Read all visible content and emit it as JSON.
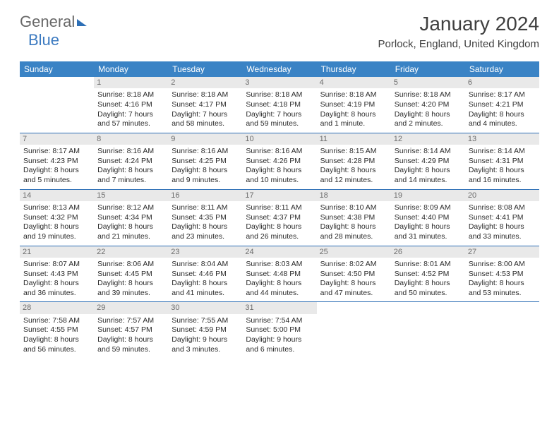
{
  "brand": {
    "name_part1": "General",
    "name_part2": "Blue",
    "color_gray": "#686868",
    "color_blue": "#3c7ac0"
  },
  "header": {
    "month_title": "January 2024",
    "location": "Porlock, England, United Kingdom"
  },
  "styling": {
    "header_bg": "#3a83c5",
    "header_text": "#ffffff",
    "daynum_bg": "#e9e9e9",
    "daynum_text": "#6d6d6d",
    "border_color": "#2d6fb6",
    "cell_text": "#2b2b2b",
    "cell_fontsize": 10.5,
    "page_bg": "#ffffff"
  },
  "day_names": [
    "Sunday",
    "Monday",
    "Tuesday",
    "Wednesday",
    "Thursday",
    "Friday",
    "Saturday"
  ],
  "weeks": [
    [
      {
        "empty": true
      },
      {
        "day": "1",
        "sunrise": "Sunrise: 8:18 AM",
        "sunset": "Sunset: 4:16 PM",
        "daylight1": "Daylight: 7 hours",
        "daylight2": "and 57 minutes."
      },
      {
        "day": "2",
        "sunrise": "Sunrise: 8:18 AM",
        "sunset": "Sunset: 4:17 PM",
        "daylight1": "Daylight: 7 hours",
        "daylight2": "and 58 minutes."
      },
      {
        "day": "3",
        "sunrise": "Sunrise: 8:18 AM",
        "sunset": "Sunset: 4:18 PM",
        "daylight1": "Daylight: 7 hours",
        "daylight2": "and 59 minutes."
      },
      {
        "day": "4",
        "sunrise": "Sunrise: 8:18 AM",
        "sunset": "Sunset: 4:19 PM",
        "daylight1": "Daylight: 8 hours",
        "daylight2": "and 1 minute."
      },
      {
        "day": "5",
        "sunrise": "Sunrise: 8:18 AM",
        "sunset": "Sunset: 4:20 PM",
        "daylight1": "Daylight: 8 hours",
        "daylight2": "and 2 minutes."
      },
      {
        "day": "6",
        "sunrise": "Sunrise: 8:17 AM",
        "sunset": "Sunset: 4:21 PM",
        "daylight1": "Daylight: 8 hours",
        "daylight2": "and 4 minutes."
      }
    ],
    [
      {
        "day": "7",
        "sunrise": "Sunrise: 8:17 AM",
        "sunset": "Sunset: 4:23 PM",
        "daylight1": "Daylight: 8 hours",
        "daylight2": "and 5 minutes."
      },
      {
        "day": "8",
        "sunrise": "Sunrise: 8:16 AM",
        "sunset": "Sunset: 4:24 PM",
        "daylight1": "Daylight: 8 hours",
        "daylight2": "and 7 minutes."
      },
      {
        "day": "9",
        "sunrise": "Sunrise: 8:16 AM",
        "sunset": "Sunset: 4:25 PM",
        "daylight1": "Daylight: 8 hours",
        "daylight2": "and 9 minutes."
      },
      {
        "day": "10",
        "sunrise": "Sunrise: 8:16 AM",
        "sunset": "Sunset: 4:26 PM",
        "daylight1": "Daylight: 8 hours",
        "daylight2": "and 10 minutes."
      },
      {
        "day": "11",
        "sunrise": "Sunrise: 8:15 AM",
        "sunset": "Sunset: 4:28 PM",
        "daylight1": "Daylight: 8 hours",
        "daylight2": "and 12 minutes."
      },
      {
        "day": "12",
        "sunrise": "Sunrise: 8:14 AM",
        "sunset": "Sunset: 4:29 PM",
        "daylight1": "Daylight: 8 hours",
        "daylight2": "and 14 minutes."
      },
      {
        "day": "13",
        "sunrise": "Sunrise: 8:14 AM",
        "sunset": "Sunset: 4:31 PM",
        "daylight1": "Daylight: 8 hours",
        "daylight2": "and 16 minutes."
      }
    ],
    [
      {
        "day": "14",
        "sunrise": "Sunrise: 8:13 AM",
        "sunset": "Sunset: 4:32 PM",
        "daylight1": "Daylight: 8 hours",
        "daylight2": "and 19 minutes."
      },
      {
        "day": "15",
        "sunrise": "Sunrise: 8:12 AM",
        "sunset": "Sunset: 4:34 PM",
        "daylight1": "Daylight: 8 hours",
        "daylight2": "and 21 minutes."
      },
      {
        "day": "16",
        "sunrise": "Sunrise: 8:11 AM",
        "sunset": "Sunset: 4:35 PM",
        "daylight1": "Daylight: 8 hours",
        "daylight2": "and 23 minutes."
      },
      {
        "day": "17",
        "sunrise": "Sunrise: 8:11 AM",
        "sunset": "Sunset: 4:37 PM",
        "daylight1": "Daylight: 8 hours",
        "daylight2": "and 26 minutes."
      },
      {
        "day": "18",
        "sunrise": "Sunrise: 8:10 AM",
        "sunset": "Sunset: 4:38 PM",
        "daylight1": "Daylight: 8 hours",
        "daylight2": "and 28 minutes."
      },
      {
        "day": "19",
        "sunrise": "Sunrise: 8:09 AM",
        "sunset": "Sunset: 4:40 PM",
        "daylight1": "Daylight: 8 hours",
        "daylight2": "and 31 minutes."
      },
      {
        "day": "20",
        "sunrise": "Sunrise: 8:08 AM",
        "sunset": "Sunset: 4:41 PM",
        "daylight1": "Daylight: 8 hours",
        "daylight2": "and 33 minutes."
      }
    ],
    [
      {
        "day": "21",
        "sunrise": "Sunrise: 8:07 AM",
        "sunset": "Sunset: 4:43 PM",
        "daylight1": "Daylight: 8 hours",
        "daylight2": "and 36 minutes."
      },
      {
        "day": "22",
        "sunrise": "Sunrise: 8:06 AM",
        "sunset": "Sunset: 4:45 PM",
        "daylight1": "Daylight: 8 hours",
        "daylight2": "and 39 minutes."
      },
      {
        "day": "23",
        "sunrise": "Sunrise: 8:04 AM",
        "sunset": "Sunset: 4:46 PM",
        "daylight1": "Daylight: 8 hours",
        "daylight2": "and 41 minutes."
      },
      {
        "day": "24",
        "sunrise": "Sunrise: 8:03 AM",
        "sunset": "Sunset: 4:48 PM",
        "daylight1": "Daylight: 8 hours",
        "daylight2": "and 44 minutes."
      },
      {
        "day": "25",
        "sunrise": "Sunrise: 8:02 AM",
        "sunset": "Sunset: 4:50 PM",
        "daylight1": "Daylight: 8 hours",
        "daylight2": "and 47 minutes."
      },
      {
        "day": "26",
        "sunrise": "Sunrise: 8:01 AM",
        "sunset": "Sunset: 4:52 PM",
        "daylight1": "Daylight: 8 hours",
        "daylight2": "and 50 minutes."
      },
      {
        "day": "27",
        "sunrise": "Sunrise: 8:00 AM",
        "sunset": "Sunset: 4:53 PM",
        "daylight1": "Daylight: 8 hours",
        "daylight2": "and 53 minutes."
      }
    ],
    [
      {
        "day": "28",
        "sunrise": "Sunrise: 7:58 AM",
        "sunset": "Sunset: 4:55 PM",
        "daylight1": "Daylight: 8 hours",
        "daylight2": "and 56 minutes."
      },
      {
        "day": "29",
        "sunrise": "Sunrise: 7:57 AM",
        "sunset": "Sunset: 4:57 PM",
        "daylight1": "Daylight: 8 hours",
        "daylight2": "and 59 minutes."
      },
      {
        "day": "30",
        "sunrise": "Sunrise: 7:55 AM",
        "sunset": "Sunset: 4:59 PM",
        "daylight1": "Daylight: 9 hours",
        "daylight2": "and 3 minutes."
      },
      {
        "day": "31",
        "sunrise": "Sunrise: 7:54 AM",
        "sunset": "Sunset: 5:00 PM",
        "daylight1": "Daylight: 9 hours",
        "daylight2": "and 6 minutes."
      },
      {
        "empty": true
      },
      {
        "empty": true
      },
      {
        "empty": true
      }
    ]
  ]
}
